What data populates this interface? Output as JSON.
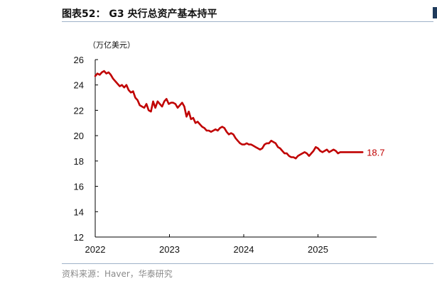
{
  "figure": {
    "title": "图表52： G3 央行总资产基本持平",
    "source": "资料来源：Haver，华泰研究"
  },
  "colors": {
    "line": "#c00000",
    "rule": "#9fb2c8",
    "source_text": "#8a8a8a"
  },
  "chart_data": {
    "type": "line",
    "title": "",
    "unit": "（万亿美元）",
    "xlabel": "",
    "ylabel": "",
    "ylim": [
      12,
      26
    ],
    "yticks": [
      12,
      14,
      16,
      18,
      20,
      22,
      24,
      26
    ],
    "xlim": [
      2022.0,
      2025.6
    ],
    "xticks": [
      2022,
      2023,
      2024,
      2025
    ],
    "xtick_labels": [
      "2022",
      "2023",
      "2024",
      "2025"
    ],
    "grid": false,
    "legend": "none",
    "end_label": "18.7",
    "series": [
      {
        "x": [
          2022.0,
          2022.03,
          2022.06,
          2022.09,
          2022.12,
          2022.15,
          2022.18,
          2022.21,
          2022.24,
          2022.27,
          2022.3,
          2022.33,
          2022.36,
          2022.39,
          2022.42,
          2022.45,
          2022.48,
          2022.51,
          2022.54,
          2022.57,
          2022.6,
          2022.63,
          2022.66,
          2022.69,
          2022.72,
          2022.75,
          2022.78,
          2022.81,
          2022.84,
          2022.87,
          2022.9,
          2022.93,
          2022.96,
          2022.99,
          2023.02,
          2023.05,
          2023.08,
          2023.11,
          2023.14,
          2023.17,
          2023.2,
          2023.23,
          2023.26,
          2023.29,
          2023.32,
          2023.35,
          2023.38,
          2023.41,
          2023.44,
          2023.47,
          2023.5,
          2023.53,
          2023.56,
          2023.59,
          2023.62,
          2023.65,
          2023.68,
          2023.71,
          2023.74,
          2023.77,
          2023.8,
          2023.83,
          2023.86,
          2023.89,
          2023.92,
          2023.95,
          2023.98,
          2024.01,
          2024.04,
          2024.07,
          2024.1,
          2024.13,
          2024.16,
          2024.19,
          2024.22,
          2024.25,
          2024.28,
          2024.31,
          2024.34,
          2024.37,
          2024.4,
          2024.43,
          2024.46,
          2024.49,
          2024.52,
          2024.55,
          2024.58,
          2024.61,
          2024.64,
          2024.67,
          2024.7,
          2024.73,
          2024.76,
          2024.79,
          2024.82,
          2024.85,
          2024.88,
          2024.91,
          2024.94,
          2024.97,
          2025.0,
          2025.03,
          2025.06,
          2025.09,
          2025.12,
          2025.15,
          2025.18,
          2025.21,
          2025.24,
          2025.27,
          2025.3,
          2025.33,
          2025.36,
          2025.39,
          2025.42,
          2025.45,
          2025.48,
          2025.51,
          2025.54,
          2025.57,
          2025.6
        ],
        "values": [
          24.7,
          24.9,
          24.8,
          25.0,
          25.1,
          24.9,
          25.0,
          24.8,
          24.5,
          24.3,
          24.1,
          23.9,
          24.0,
          23.8,
          24.0,
          23.6,
          23.4,
          23.5,
          23.0,
          22.8,
          22.4,
          22.3,
          22.2,
          22.5,
          22.0,
          21.9,
          22.7,
          22.2,
          22.7,
          22.5,
          22.3,
          22.7,
          22.9,
          22.5,
          22.6,
          22.6,
          22.5,
          22.2,
          22.4,
          22.6,
          22.3,
          21.5,
          21.9,
          21.3,
          21.4,
          21.0,
          21.1,
          20.9,
          20.7,
          20.6,
          20.4,
          20.4,
          20.3,
          20.4,
          20.5,
          20.4,
          20.6,
          20.7,
          20.6,
          20.3,
          20.1,
          20.2,
          20.1,
          19.8,
          19.6,
          19.4,
          19.3,
          19.3,
          19.4,
          19.3,
          19.3,
          19.2,
          19.1,
          19.0,
          18.9,
          19.0,
          19.3,
          19.4,
          19.4,
          19.6,
          19.5,
          19.4,
          19.1,
          19.0,
          18.8,
          18.6,
          18.6,
          18.4,
          18.3,
          18.3,
          18.2,
          18.4,
          18.5,
          18.6,
          18.7,
          18.6,
          18.4,
          18.6,
          18.8,
          19.1,
          19.0,
          18.8,
          18.7,
          18.8,
          18.9,
          18.7,
          18.8,
          18.9,
          18.8,
          18.6,
          18.7,
          18.7,
          18.7,
          18.7,
          18.7,
          18.7,
          18.7,
          18.7,
          18.7,
          18.7,
          18.7
        ]
      }
    ]
  }
}
